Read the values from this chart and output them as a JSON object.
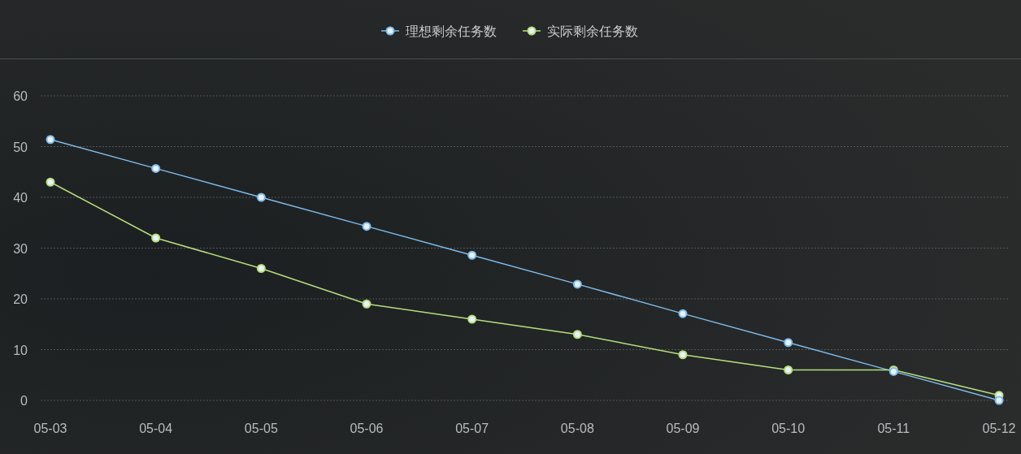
{
  "chart_data": {
    "type": "line",
    "categories": [
      "05-03",
      "05-04",
      "05-05",
      "05-06",
      "05-07",
      "05-08",
      "05-09",
      "05-10",
      "05-11",
      "05-12"
    ],
    "series": [
      {
        "name": "理想剩余任务数",
        "color": "#7dbbea",
        "values": [
          51.4,
          45.7,
          40,
          34.3,
          28.6,
          22.9,
          17.1,
          11.4,
          5.7,
          0
        ]
      },
      {
        "name": "实际剩余任务数",
        "color": "#b6de7e",
        "values": [
          43,
          32,
          26,
          19,
          16,
          13,
          9,
          6,
          6,
          1
        ]
      }
    ],
    "ylim": [
      0,
      60
    ],
    "yticks": [
      0,
      10,
      20,
      30,
      40,
      50,
      60
    ],
    "grid": "y",
    "legend": "top",
    "marker": "circle"
  }
}
